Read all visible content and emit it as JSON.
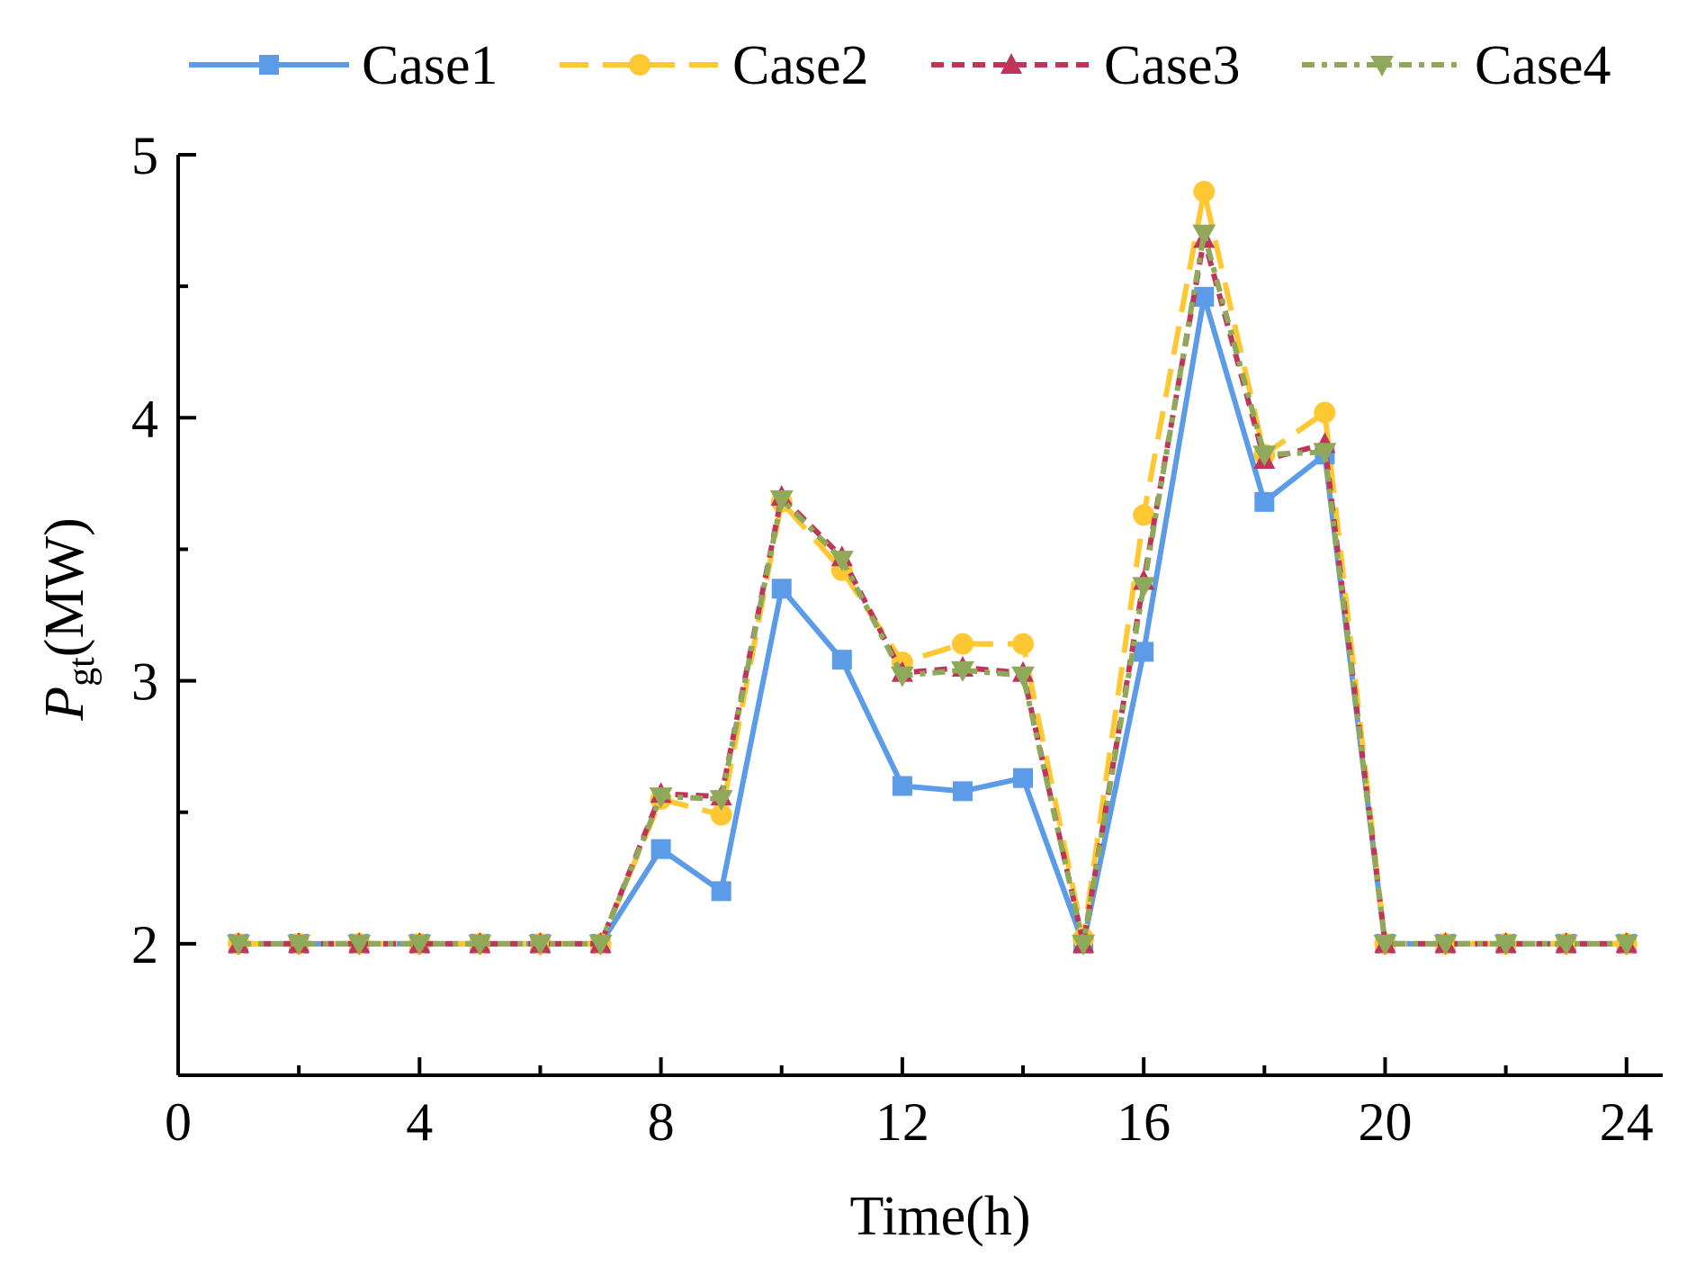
{
  "chart_data": {
    "type": "line",
    "title": "",
    "xlabel": "Time(h)",
    "ylabel_main": "P",
    "ylabel_sub": "gt",
    "ylabel_unit": "(MW)",
    "xlim": [
      0,
      24.6
    ],
    "ylim": [
      1.5,
      5
    ],
    "xticks": [
      0,
      4,
      8,
      12,
      16,
      20,
      24
    ],
    "xticks_minor": [
      2,
      6,
      10,
      14,
      18,
      22
    ],
    "yticks": [
      2,
      3,
      4,
      5
    ],
    "yticks_minor": [
      2.5,
      3.5,
      4.5
    ],
    "xtick_labels": [
      "0",
      "4",
      "8",
      "12",
      "16",
      "20",
      "24"
    ],
    "ytick_labels": [
      "2",
      "3",
      "4",
      "5"
    ],
    "grid": false,
    "legend_position": "top",
    "x": [
      1,
      2,
      3,
      4,
      5,
      6,
      7,
      8,
      9,
      10,
      11,
      12,
      13,
      14,
      15,
      16,
      17,
      18,
      19,
      20,
      21,
      22,
      23,
      24
    ],
    "series": [
      {
        "name": "Case1",
        "color": "#5b9be8",
        "marker": "square",
        "dash": "solid",
        "values": [
          2,
          2,
          2,
          2,
          2,
          2,
          2,
          2.36,
          2.2,
          3.35,
          3.08,
          2.6,
          2.58,
          2.63,
          2.0,
          3.11,
          4.46,
          3.68,
          3.86,
          2,
          2,
          2,
          2,
          2
        ]
      },
      {
        "name": "Case2",
        "color": "#ffc832",
        "marker": "circle",
        "dash": "long-dash",
        "values": [
          2,
          2,
          2,
          2,
          2,
          2,
          2,
          2.55,
          2.49,
          3.68,
          3.42,
          3.07,
          3.14,
          3.14,
          2.02,
          3.63,
          4.86,
          3.86,
          4.02,
          2,
          2,
          2,
          2,
          2
        ]
      },
      {
        "name": "Case3",
        "color": "#c0345a",
        "marker": "triangle-up",
        "dash": "short-dash",
        "values": [
          2,
          2,
          2,
          2,
          2,
          2,
          2,
          2.57,
          2.56,
          3.7,
          3.47,
          3.03,
          3.05,
          3.03,
          2.0,
          3.38,
          4.68,
          3.84,
          3.9,
          2,
          2,
          2,
          2,
          2
        ]
      },
      {
        "name": "Case4",
        "color": "#8fa85a",
        "marker": "triangle-down",
        "dash": "dot-dash",
        "values": [
          2,
          2,
          2,
          2,
          2,
          2,
          2,
          2.56,
          2.55,
          3.69,
          3.46,
          3.02,
          3.04,
          3.02,
          2.0,
          3.36,
          4.7,
          3.86,
          3.87,
          2,
          2,
          2,
          2,
          2
        ]
      }
    ]
  }
}
